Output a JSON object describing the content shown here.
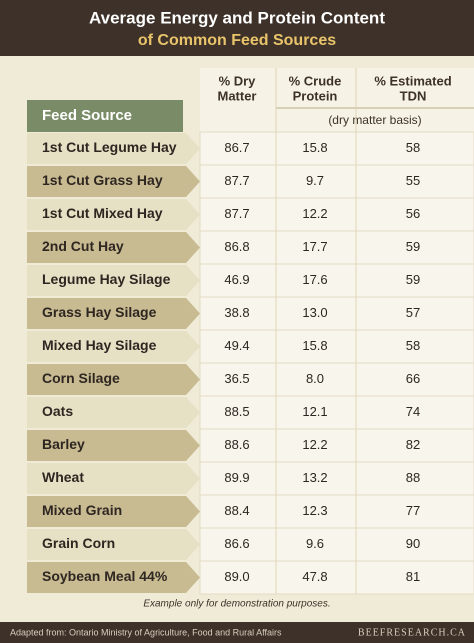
{
  "header": {
    "title": "Average Energy and Protein Content",
    "subtitle": "of Common Feed Sources"
  },
  "table": {
    "row_header": "Feed Source",
    "columns": [
      [
        "% Dry",
        "Matter"
      ],
      [
        "% Crude",
        "Protein"
      ],
      [
        "% Estimated",
        "TDN"
      ]
    ],
    "basis_note": "(dry matter basis)",
    "rows": [
      [
        "1st Cut Legume Hay",
        "86.7",
        "15.8",
        "58"
      ],
      [
        "1st Cut Grass Hay",
        "87.7",
        "9.7",
        "55"
      ],
      [
        "1st Cut Mixed Hay",
        "87.7",
        "12.2",
        "56"
      ],
      [
        "2nd Cut Hay",
        "86.8",
        "17.7",
        "59"
      ],
      [
        "Legume Hay Silage",
        "46.9",
        "17.6",
        "59"
      ],
      [
        "Grass Hay Silage",
        "38.8",
        "13.0",
        "57"
      ],
      [
        "Mixed Hay Silage",
        "49.4",
        "15.8",
        "58"
      ],
      [
        "Corn Silage",
        "36.5",
        "8.0",
        "66"
      ],
      [
        "Oats",
        "88.5",
        "12.1",
        "74"
      ],
      [
        "Barley",
        "88.6",
        "12.2",
        "82"
      ],
      [
        "Wheat",
        "89.9",
        "13.2",
        "88"
      ],
      [
        "Mixed Grain",
        "88.4",
        "12.3",
        "77"
      ],
      [
        "Grain Corn",
        "86.6",
        "9.6",
        "90"
      ],
      [
        "Soybean Meal 44%",
        "89.0",
        "47.8",
        "81"
      ]
    ],
    "note": "Example only for demonstration purposes."
  },
  "footer": {
    "source": "Adapted from: Ontario Ministry of Agriculture, Food and Rural Affairs",
    "site": "BEEFRESEARCH.CA"
  }
}
